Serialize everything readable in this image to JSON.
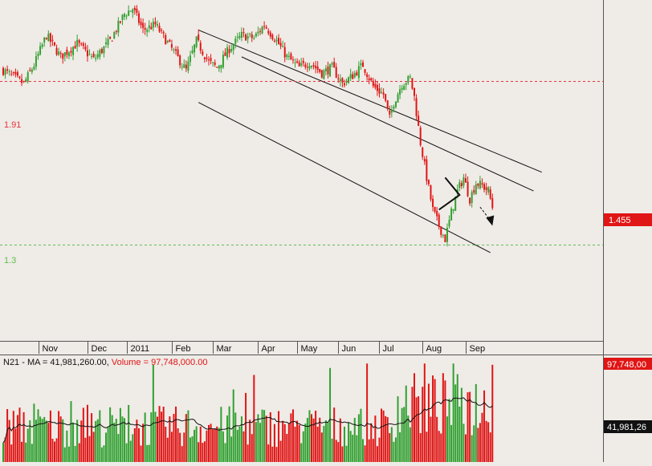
{
  "chart_data": [
    {
      "type": "candlestick",
      "title": "",
      "x_tick_labels": [
        "Nov",
        "Dec",
        "2011",
        "Feb",
        "Mar",
        "Apr",
        "May",
        "Jun",
        "Jul",
        "Aug",
        "Sep"
      ],
      "ylim": [
        0.95,
        2.2
      ],
      "horizontal_lines": [
        {
          "label": "1.91",
          "value": 1.91,
          "color": "#e8333a",
          "style": "dashed"
        },
        {
          "label": "1.3",
          "value": 1.3,
          "color": "#5cbf4e",
          "style": "dashed"
        }
      ],
      "last_price_label": "1.455",
      "last_price_value": 1.455,
      "up_color": "#31a131",
      "down_color": "#e01515",
      "series_anchors": [
        {
          "day": 0,
          "price": 1.95
        },
        {
          "day": 10,
          "price": 1.9
        },
        {
          "day": 15,
          "price": 1.97
        },
        {
          "day": 21,
          "price": 2.08
        },
        {
          "day": 28,
          "price": 2.0
        },
        {
          "day": 36,
          "price": 2.05
        },
        {
          "day": 44,
          "price": 1.99
        },
        {
          "day": 52,
          "price": 2.06
        },
        {
          "day": 59,
          "price": 2.16
        },
        {
          "day": 63,
          "price": 2.18
        },
        {
          "day": 68,
          "price": 2.1
        },
        {
          "day": 74,
          "price": 2.12
        },
        {
          "day": 82,
          "price": 2.03
        },
        {
          "day": 89,
          "price": 1.95
        },
        {
          "day": 94,
          "price": 2.06
        },
        {
          "day": 100,
          "price": 1.98
        },
        {
          "day": 104,
          "price": 1.96
        },
        {
          "day": 110,
          "price": 2.03
        },
        {
          "day": 116,
          "price": 2.08
        },
        {
          "day": 122,
          "price": 2.07
        },
        {
          "day": 127,
          "price": 2.12
        },
        {
          "day": 133,
          "price": 2.06
        },
        {
          "day": 138,
          "price": 2.0
        },
        {
          "day": 144,
          "price": 1.96
        },
        {
          "day": 149,
          "price": 1.98
        },
        {
          "day": 155,
          "price": 1.94
        },
        {
          "day": 160,
          "price": 1.96
        },
        {
          "day": 165,
          "price": 1.9
        },
        {
          "day": 170,
          "price": 1.93
        },
        {
          "day": 175,
          "price": 1.97
        },
        {
          "day": 180,
          "price": 1.89
        },
        {
          "day": 185,
          "price": 1.86
        },
        {
          "day": 188,
          "price": 1.77
        },
        {
          "day": 190,
          "price": 1.83
        },
        {
          "day": 194,
          "price": 1.9
        },
        {
          "day": 198,
          "price": 1.92
        },
        {
          "day": 200,
          "price": 1.85
        },
        {
          "day": 203,
          "price": 1.68
        },
        {
          "day": 206,
          "price": 1.55
        },
        {
          "day": 209,
          "price": 1.43
        },
        {
          "day": 212,
          "price": 1.37
        },
        {
          "day": 215,
          "price": 1.32
        },
        {
          "day": 218,
          "price": 1.42
        },
        {
          "day": 221,
          "price": 1.5
        },
        {
          "day": 224,
          "price": 1.55
        },
        {
          "day": 227,
          "price": 1.47
        },
        {
          "day": 230,
          "price": 1.53
        },
        {
          "day": 233,
          "price": 1.52
        },
        {
          "day": 236,
          "price": 1.5
        },
        {
          "day": 238,
          "price": 1.44
        }
      ],
      "annotations": [
        {
          "kind": "descending-channel",
          "lines": [
            {
              "from": [
                95,
                2.1
              ],
              "to": [
                262,
                1.57
              ]
            },
            {
              "from": [
                116,
                2.0
              ],
              "to": [
                258,
                1.5
              ]
            },
            {
              "from": [
                95,
                1.83
              ],
              "to": [
                237,
                1.27
              ]
            }
          ]
        },
        {
          "kind": "triangle",
          "points": [
            [
              215,
              1.55
            ],
            [
              222,
              1.485
            ],
            [
              212,
              1.43
            ]
          ]
        },
        {
          "kind": "arrow",
          "from": [
            232,
            1.44
          ],
          "to": [
            238,
            1.37
          ]
        }
      ]
    },
    {
      "type": "bar",
      "title": "",
      "header_text": "N21 - MA = 41,981,260.00,",
      "series_label": "Volume = 97,748,000.00",
      "ma_value_label": "41,981,26",
      "volume_value_label": "97,748,00",
      "ma_value": 41981260,
      "volume_value": 97748000,
      "ylim": [
        0,
        100000000
      ]
    }
  ]
}
